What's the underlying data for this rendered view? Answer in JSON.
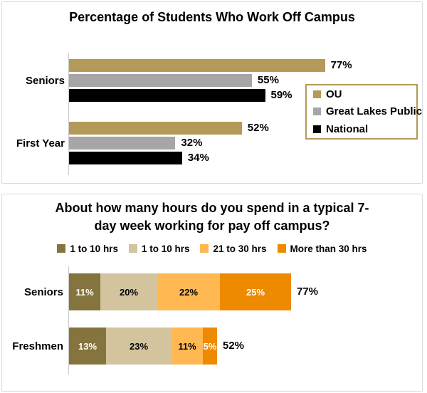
{
  "colors": {
    "panel_border": "#d9d9d9",
    "axis_line": "#c9c9c9",
    "legend_border": "#b49a58",
    "text": "#000000"
  },
  "chart_data": [
    {
      "type": "bar",
      "subtype": "grouped",
      "orientation": "horizontal",
      "title": "Percentage of Students Who Work Off Campus",
      "categories": [
        "Seniors",
        "First Year"
      ],
      "series": [
        {
          "name": "OU",
          "color": "#b49a58",
          "values": [
            77,
            52
          ]
        },
        {
          "name": "Great Lakes Public",
          "color": "#a6a6a6",
          "values": [
            55,
            32
          ]
        },
        {
          "name": "National",
          "color": "#000000",
          "values": [
            59,
            34
          ]
        }
      ],
      "data_labels": [
        [
          "77%",
          "52%"
        ],
        [
          "55%",
          "32%"
        ],
        [
          "59%",
          "34%"
        ]
      ],
      "xlim": [
        0,
        100
      ],
      "grid": false,
      "legend_position": "right"
    },
    {
      "type": "bar",
      "subtype": "stacked",
      "orientation": "horizontal",
      "title": "About how many hours do you spend in a typical 7-day week working for pay off campus?",
      "title_lines": [
        "About how many hours do you spend in a typical 7-",
        "day week working for pay off campus?"
      ],
      "categories": [
        "Seniors",
        "Freshmen"
      ],
      "series": [
        {
          "name": "1 to 10 hrs",
          "color": "#85743d",
          "label_color": "#ffffff",
          "values": [
            11,
            13
          ]
        },
        {
          "name": "1 to 10 hrs",
          "color": "#d3c49e",
          "label_color": "#000000",
          "values": [
            20,
            23
          ]
        },
        {
          "name": "21 to 30 hrs",
          "color": "#ffb852",
          "label_color": "#000000",
          "values": [
            22,
            11
          ]
        },
        {
          "name": "More than 30 hrs",
          "color": "#ee8a00",
          "label_color": "#ffffff",
          "values": [
            25,
            5
          ]
        }
      ],
      "segment_labels": [
        [
          "11%",
          "20%",
          "22%",
          "25%"
        ],
        [
          "13%",
          "23%",
          "11%",
          "5%"
        ]
      ],
      "totals": [
        77,
        52
      ],
      "total_labels": [
        "77%",
        "52%"
      ],
      "xlim": [
        0,
        100
      ],
      "grid": false,
      "legend_position": "top"
    }
  ]
}
